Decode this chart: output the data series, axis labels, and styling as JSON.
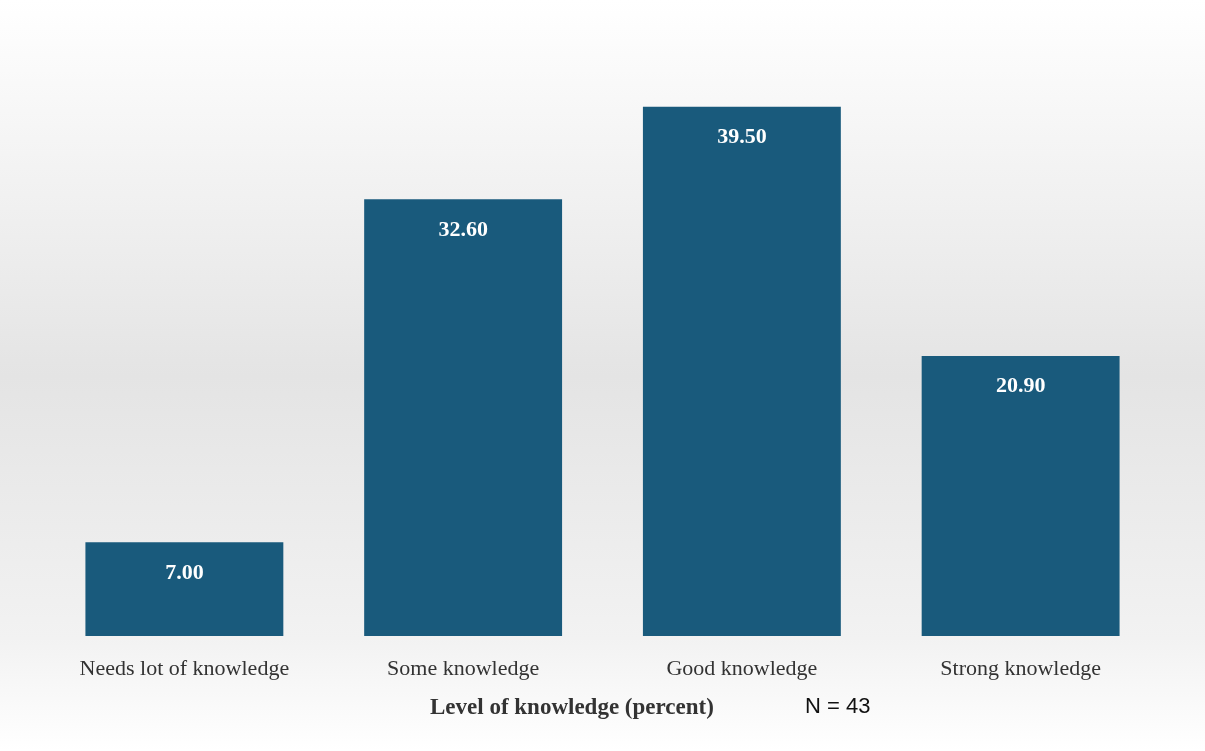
{
  "chart_data": {
    "type": "bar",
    "xlabel": "Level of knowledge (percent)",
    "annotations": [
      "N = 43"
    ],
    "categories": [
      "Needs lot of knowledge",
      "Some knowledge",
      "Good knowledge",
      "Strong knowledge"
    ],
    "values": [
      7.0,
      32.6,
      39.5,
      20.9
    ],
    "value_labels": [
      "7.00",
      "32.60",
      "39.50",
      "20.90"
    ],
    "color": "#195a7c"
  }
}
